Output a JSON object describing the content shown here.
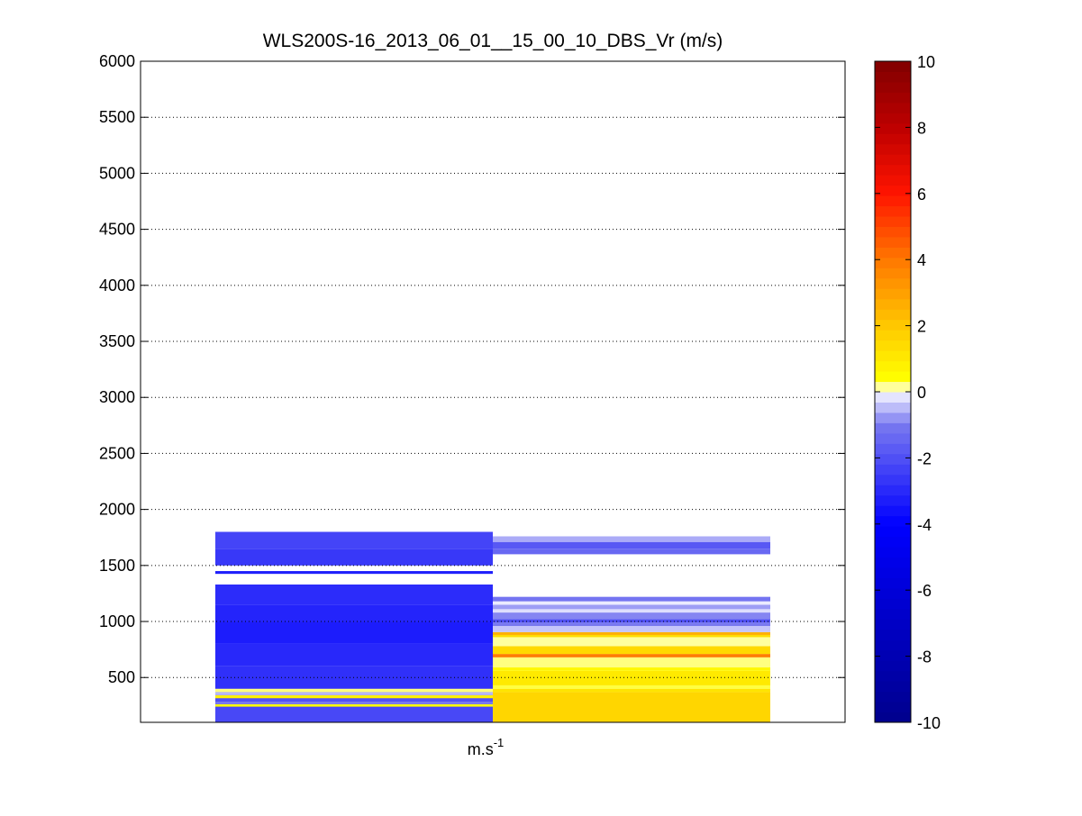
{
  "chart_data": {
    "type": "heatmap",
    "title": "WLS200S-16_2013_06_01__15_00_10_DBS_Vr (m/s)",
    "xlabel": "m.s",
    "xlabel_superscript": "-1",
    "ylabel": "",
    "ylim": [
      100,
      6000
    ],
    "yticks": [
      500,
      1000,
      1500,
      2000,
      2500,
      3000,
      3500,
      4000,
      4500,
      5000,
      5500,
      6000
    ],
    "ygrid": "dotted",
    "colormap": "blue-white-yellow-red",
    "clim": [
      -10,
      10
    ],
    "colorbar_ticks": [
      -10,
      -8,
      -6,
      -4,
      -2,
      0,
      2,
      4,
      6,
      8,
      10
    ],
    "columns": [
      {
        "bins": [
          {
            "y0": 100,
            "y1": 400,
            "value": -2.2
          },
          {
            "y0": 240,
            "y1": 262,
            "value": 0.4
          },
          {
            "y0": 262,
            "y1": 285,
            "value": -1.0
          },
          {
            "y0": 285,
            "y1": 315,
            "value": -2.0
          },
          {
            "y0": 315,
            "y1": 342,
            "value": 0.8
          },
          {
            "y0": 342,
            "y1": 370,
            "value": -0.5
          },
          {
            "y0": 370,
            "y1": 400,
            "value": 0.2
          },
          {
            "y0": 400,
            "y1": 600,
            "value": -2.8
          },
          {
            "y0": 600,
            "y1": 800,
            "value": -3.0
          },
          {
            "y0": 800,
            "y1": 1000,
            "value": -3.3
          },
          {
            "y0": 1000,
            "y1": 1150,
            "value": -3.1
          },
          {
            "y0": 1150,
            "y1": 1330,
            "value": -2.9
          },
          {
            "y0": 1425,
            "y1": 1450,
            "value": -3.2
          },
          {
            "y0": 1500,
            "y1": 1650,
            "value": -2.6
          },
          {
            "y0": 1650,
            "y1": 1800,
            "value": -2.3
          }
        ]
      },
      {
        "bins": [
          {
            "y0": 100,
            "y1": 370,
            "value": 1.6
          },
          {
            "y0": 370,
            "y1": 400,
            "value": 1.2
          },
          {
            "y0": 400,
            "y1": 430,
            "value": 0.3
          },
          {
            "y0": 430,
            "y1": 560,
            "value": 1.0
          },
          {
            "y0": 560,
            "y1": 590,
            "value": 0.6
          },
          {
            "y0": 590,
            "y1": 680,
            "value": 0.2
          },
          {
            "y0": 680,
            "y1": 710,
            "value": 3.9
          },
          {
            "y0": 710,
            "y1": 780,
            "value": 1.5
          },
          {
            "y0": 780,
            "y1": 860,
            "value": 0.15
          },
          {
            "y0": 860,
            "y1": 880,
            "value": 1.4
          },
          {
            "y0": 880,
            "y1": 905,
            "value": 2.6
          },
          {
            "y0": 905,
            "y1": 960,
            "value": -0.4
          },
          {
            "y0": 960,
            "y1": 990,
            "value": -1.0
          },
          {
            "y0": 990,
            "y1": 1020,
            "value": -2.0
          },
          {
            "y0": 1020,
            "y1": 1080,
            "value": -0.9
          },
          {
            "y0": 1080,
            "y1": 1110,
            "value": -0.2
          },
          {
            "y0": 1110,
            "y1": 1150,
            "value": -0.7
          },
          {
            "y0": 1150,
            "y1": 1180,
            "value": -0.1
          },
          {
            "y0": 1180,
            "y1": 1220,
            "value": -1.1
          },
          {
            "y0": 1600,
            "y1": 1650,
            "value": -1.4
          },
          {
            "y0": 1650,
            "y1": 1710,
            "value": -1.8
          },
          {
            "y0": 1710,
            "y1": 1760,
            "value": -0.6
          }
        ]
      }
    ]
  }
}
